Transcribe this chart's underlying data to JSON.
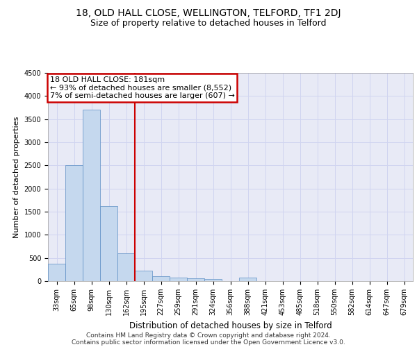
{
  "title_line1": "18, OLD HALL CLOSE, WELLINGTON, TELFORD, TF1 2DJ",
  "title_line2": "Size of property relative to detached houses in Telford",
  "xlabel": "Distribution of detached houses by size in Telford",
  "ylabel": "Number of detached properties",
  "categories": [
    "33sqm",
    "65sqm",
    "98sqm",
    "130sqm",
    "162sqm",
    "195sqm",
    "227sqm",
    "259sqm",
    "291sqm",
    "324sqm",
    "356sqm",
    "388sqm",
    "421sqm",
    "453sqm",
    "485sqm",
    "518sqm",
    "550sqm",
    "582sqm",
    "614sqm",
    "647sqm",
    "679sqm"
  ],
  "values": [
    370,
    2500,
    3700,
    1620,
    600,
    230,
    110,
    70,
    55,
    40,
    0,
    70,
    0,
    0,
    0,
    0,
    0,
    0,
    0,
    0,
    0
  ],
  "bar_color": "#c5d8ee",
  "bar_edge_color": "#5b8ec4",
  "annotation_text": "18 OLD HALL CLOSE: 181sqm\n← 93% of detached houses are smaller (8,552)\n7% of semi-detached houses are larger (607) →",
  "annotation_box_color": "#ffffff",
  "annotation_box_edge_color": "#cc0000",
  "vline_x": 4.5,
  "vline_color": "#cc0000",
  "ylim": [
    0,
    4500
  ],
  "yticks": [
    0,
    500,
    1000,
    1500,
    2000,
    2500,
    3000,
    3500,
    4000,
    4500
  ],
  "grid_color": "#d0d4f0",
  "background_color": "#e8eaf6",
  "footer_line1": "Contains HM Land Registry data © Crown copyright and database right 2024.",
  "footer_line2": "Contains public sector information licensed under the Open Government Licence v3.0.",
  "title1_fontsize": 10,
  "title2_fontsize": 9,
  "xlabel_fontsize": 8.5,
  "ylabel_fontsize": 8,
  "tick_fontsize": 7,
  "annotation_fontsize": 8,
  "footer_fontsize": 6.5
}
